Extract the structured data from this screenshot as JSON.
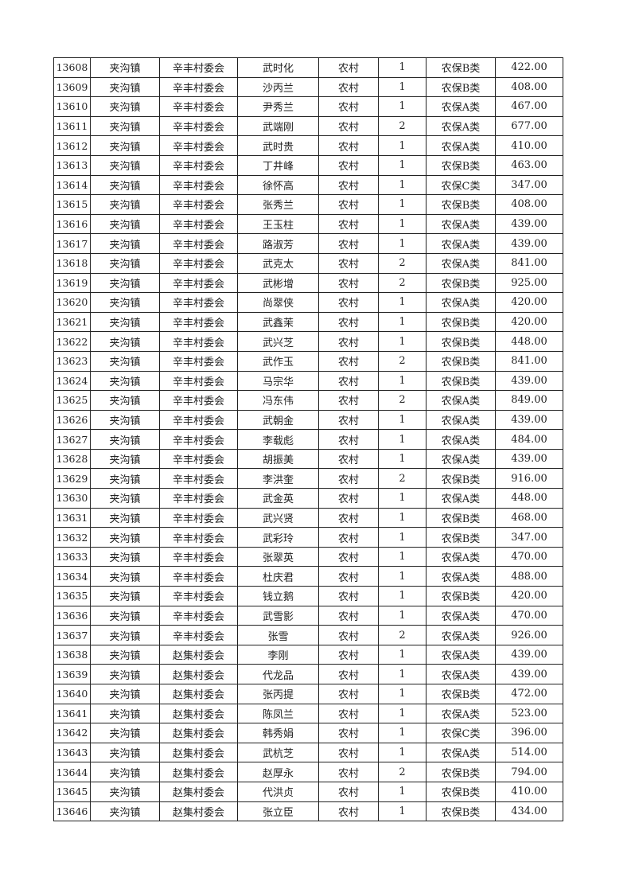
{
  "rows": [
    [
      "13608",
      "夹沟镇",
      "辛丰村委会",
      "武时化",
      "农村",
      "1",
      "农保B类",
      "422.00"
    ],
    [
      "13609",
      "夹沟镇",
      "辛丰村委会",
      "沙丙兰",
      "农村",
      "1",
      "农保B类",
      "408.00"
    ],
    [
      "13610",
      "夹沟镇",
      "辛丰村委会",
      "尹秀兰",
      "农村",
      "1",
      "农保A类",
      "467.00"
    ],
    [
      "13611",
      "夹沟镇",
      "辛丰村委会",
      "武端刚",
      "农村",
      "2",
      "农保A类",
      "677.00"
    ],
    [
      "13612",
      "夹沟镇",
      "辛丰村委会",
      "武时贵",
      "农村",
      "1",
      "农保A类",
      "410.00"
    ],
    [
      "13613",
      "夹沟镇",
      "辛丰村委会",
      "丁井峰",
      "农村",
      "1",
      "农保B类",
      "463.00"
    ],
    [
      "13614",
      "夹沟镇",
      "辛丰村委会",
      "徐怀高",
      "农村",
      "1",
      "农保C类",
      "347.00"
    ],
    [
      "13615",
      "夹沟镇",
      "辛丰村委会",
      "张秀兰",
      "农村",
      "1",
      "农保B类",
      "408.00"
    ],
    [
      "13616",
      "夹沟镇",
      "辛丰村委会",
      "王玉柱",
      "农村",
      "1",
      "农保A类",
      "439.00"
    ],
    [
      "13617",
      "夹沟镇",
      "辛丰村委会",
      "路淑芳",
      "农村",
      "1",
      "农保A类",
      "439.00"
    ],
    [
      "13618",
      "夹沟镇",
      "辛丰村委会",
      "武克太",
      "农村",
      "2",
      "农保A类",
      "841.00"
    ],
    [
      "13619",
      "夹沟镇",
      "辛丰村委会",
      "武彬增",
      "农村",
      "2",
      "农保B类",
      "925.00"
    ],
    [
      "13620",
      "夹沟镇",
      "辛丰村委会",
      "尚翠侠",
      "农村",
      "1",
      "农保A类",
      "420.00"
    ],
    [
      "13621",
      "夹沟镇",
      "辛丰村委会",
      "武鑫茉",
      "农村",
      "1",
      "农保B类",
      "420.00"
    ],
    [
      "13622",
      "夹沟镇",
      "辛丰村委会",
      "武兴芝",
      "农村",
      "1",
      "农保B类",
      "448.00"
    ],
    [
      "13623",
      "夹沟镇",
      "辛丰村委会",
      "武作玉",
      "农村",
      "2",
      "农保B类",
      "841.00"
    ],
    [
      "13624",
      "夹沟镇",
      "辛丰村委会",
      "马宗华",
      "农村",
      "1",
      "农保B类",
      "439.00"
    ],
    [
      "13625",
      "夹沟镇",
      "辛丰村委会",
      "冯东伟",
      "农村",
      "2",
      "农保A类",
      "849.00"
    ],
    [
      "13626",
      "夹沟镇",
      "辛丰村委会",
      "武朝金",
      "农村",
      "1",
      "农保A类",
      "439.00"
    ],
    [
      "13627",
      "夹沟镇",
      "辛丰村委会",
      "李载彪",
      "农村",
      "1",
      "农保A类",
      "484.00"
    ],
    [
      "13628",
      "夹沟镇",
      "辛丰村委会",
      "胡振美",
      "农村",
      "1",
      "农保A类",
      "439.00"
    ],
    [
      "13629",
      "夹沟镇",
      "辛丰村委会",
      "李洪奎",
      "农村",
      "2",
      "农保B类",
      "916.00"
    ],
    [
      "13630",
      "夹沟镇",
      "辛丰村委会",
      "武金英",
      "农村",
      "1",
      "农保A类",
      "448.00"
    ],
    [
      "13631",
      "夹沟镇",
      "辛丰村委会",
      "武兴贤",
      "农村",
      "1",
      "农保B类",
      "468.00"
    ],
    [
      "13632",
      "夹沟镇",
      "辛丰村委会",
      "武彩玲",
      "农村",
      "1",
      "农保B类",
      "347.00"
    ],
    [
      "13633",
      "夹沟镇",
      "辛丰村委会",
      "张翠英",
      "农村",
      "1",
      "农保A类",
      "470.00"
    ],
    [
      "13634",
      "夹沟镇",
      "辛丰村委会",
      "杜庆君",
      "农村",
      "1",
      "农保A类",
      "488.00"
    ],
    [
      "13635",
      "夹沟镇",
      "辛丰村委会",
      "钱立鹅",
      "农村",
      "1",
      "农保B类",
      "420.00"
    ],
    [
      "13636",
      "夹沟镇",
      "辛丰村委会",
      "武雪影",
      "农村",
      "1",
      "农保A类",
      "470.00"
    ],
    [
      "13637",
      "夹沟镇",
      "辛丰村委会",
      "张雪",
      "农村",
      "2",
      "农保A类",
      "926.00"
    ],
    [
      "13638",
      "夹沟镇",
      "赵集村委会",
      "李刚",
      "农村",
      "1",
      "农保A类",
      "439.00"
    ],
    [
      "13639",
      "夹沟镇",
      "赵集村委会",
      "代龙品",
      "农村",
      "1",
      "农保A类",
      "439.00"
    ],
    [
      "13640",
      "夹沟镇",
      "赵集村委会",
      "张丙提",
      "农村",
      "1",
      "农保B类",
      "472.00"
    ],
    [
      "13641",
      "夹沟镇",
      "赵集村委会",
      "陈凤兰",
      "农村",
      "1",
      "农保A类",
      "523.00"
    ],
    [
      "13642",
      "夹沟镇",
      "赵集村委会",
      "韩秀娟",
      "农村",
      "1",
      "农保C类",
      "396.00"
    ],
    [
      "13643",
      "夹沟镇",
      "赵集村委会",
      "武杭芝",
      "农村",
      "1",
      "农保A类",
      "514.00"
    ],
    [
      "13644",
      "夹沟镇",
      "赵集村委会",
      "赵厚永",
      "农村",
      "2",
      "农保B类",
      "794.00"
    ],
    [
      "13645",
      "夹沟镇",
      "赵集村委会",
      "代洪贞",
      "农村",
      "1",
      "农保B类",
      "410.00"
    ],
    [
      "13646",
      "夹沟镇",
      "赵集村委会",
      "张立臣",
      "农村",
      "1",
      "农保B类",
      "434.00"
    ]
  ]
}
